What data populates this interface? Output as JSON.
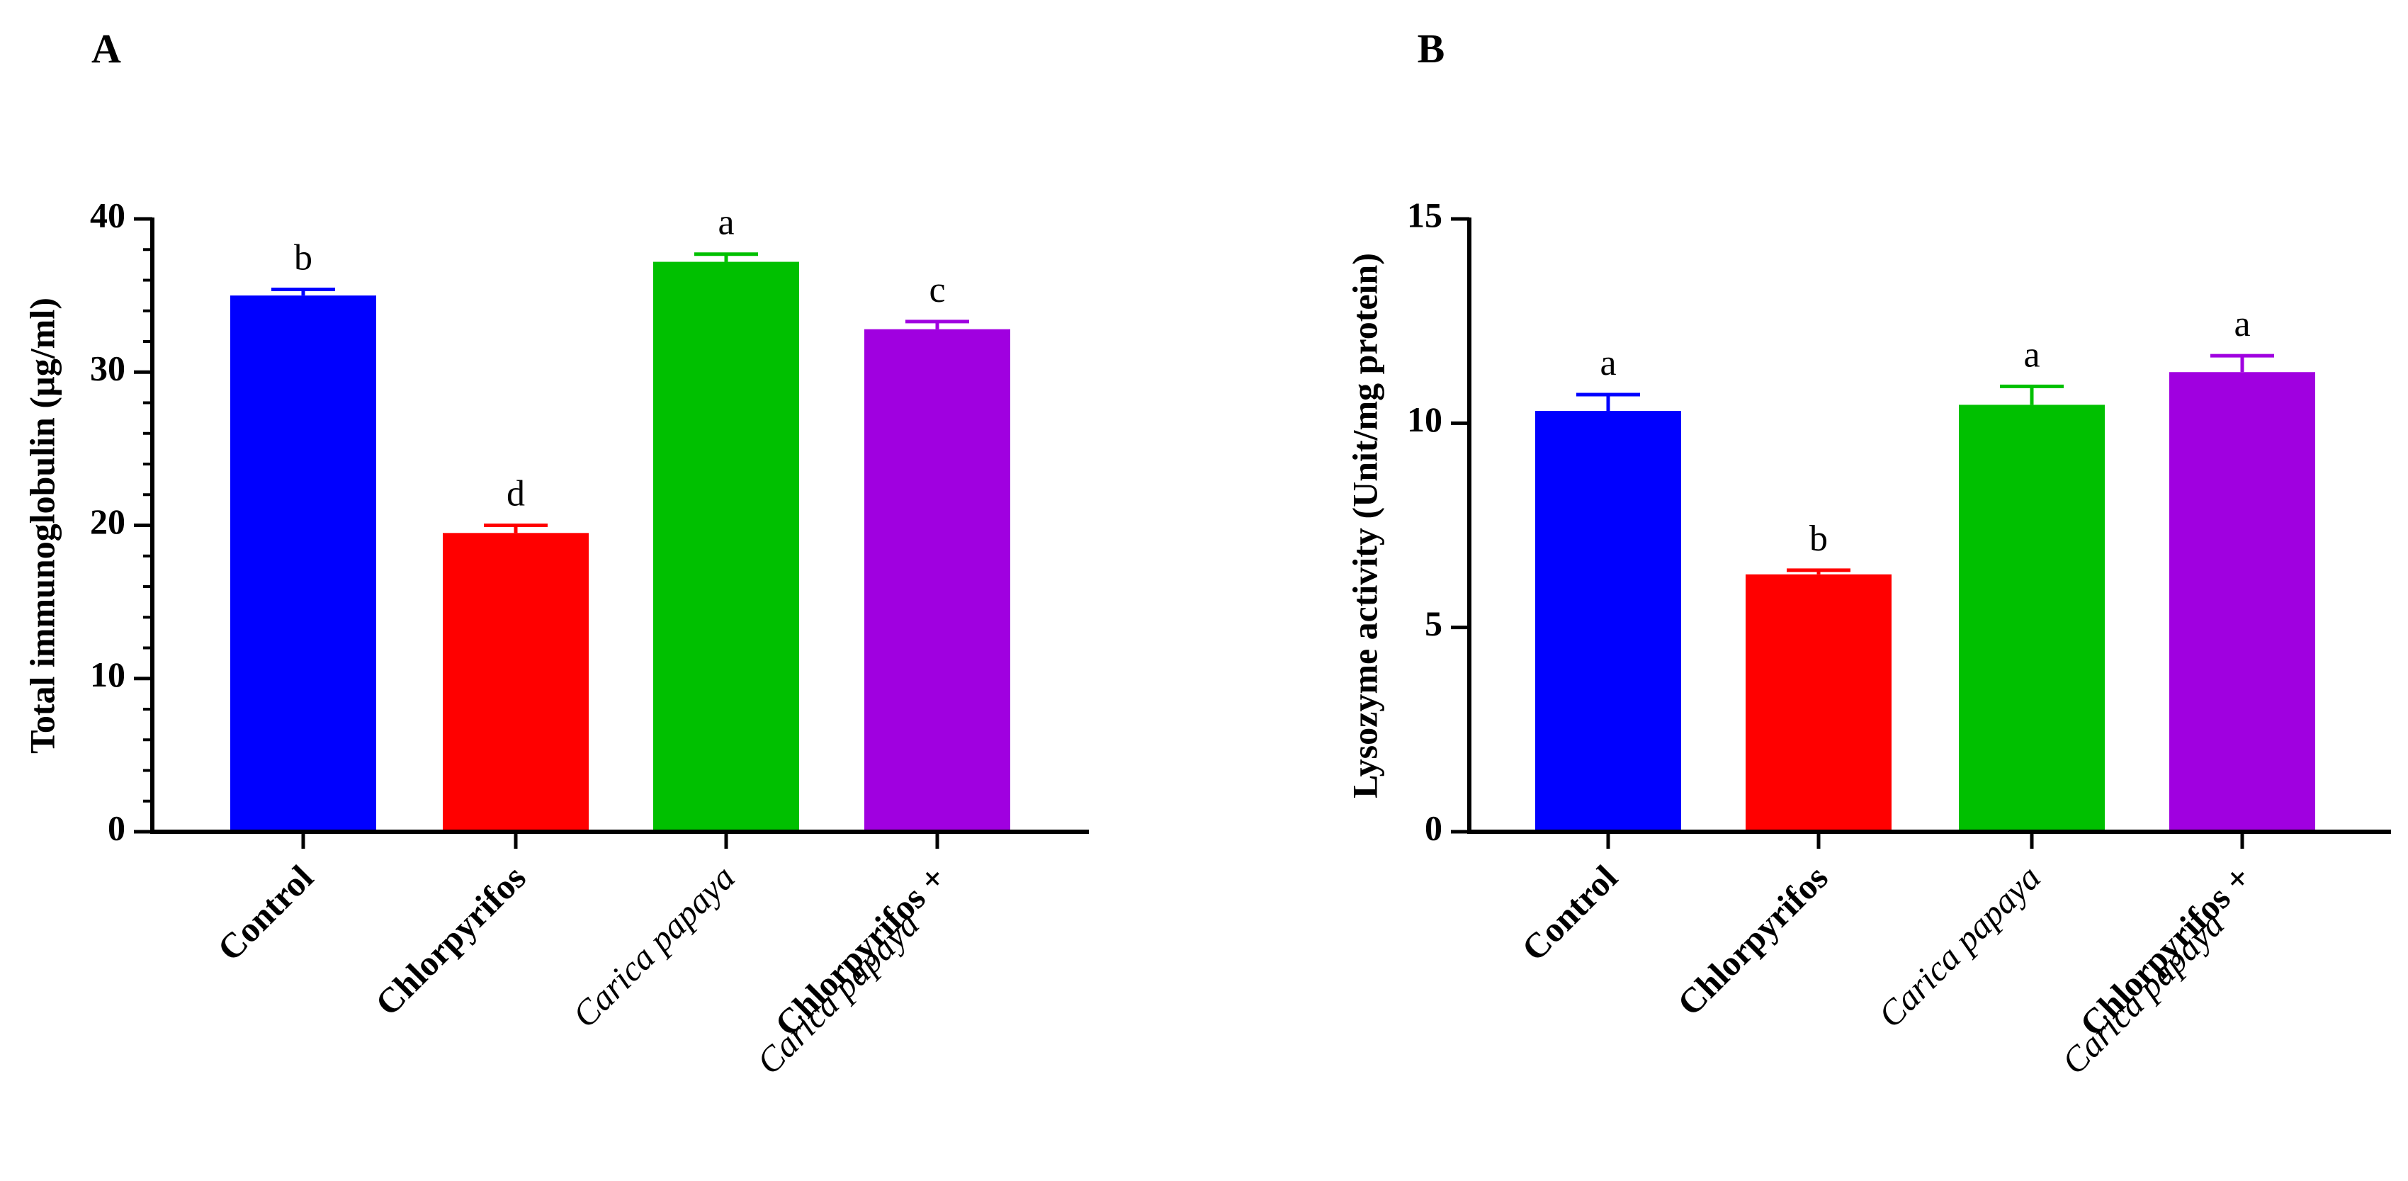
{
  "chart_data": [
    {
      "panel_label": "A",
      "type": "bar",
      "ylabel": "Total immunoglobulin (µg/ml)",
      "ylim": [
        0,
        40
      ],
      "yticks": [
        0,
        10,
        20,
        30,
        40
      ],
      "grid": false,
      "categories": [
        {
          "lines": [
            "Control"
          ],
          "styles": [
            "bold"
          ]
        },
        {
          "lines": [
            "Chlorpyrifos"
          ],
          "styles": [
            "bold"
          ]
        },
        {
          "lines": [
            "Carica papaya"
          ],
          "styles": [
            "italic"
          ]
        },
        {
          "lines": [
            "Chlorpyrifos +",
            "Carica papaya"
          ],
          "styles": [
            "bold",
            "italic"
          ]
        }
      ],
      "values": [
        35.0,
        19.5,
        37.2,
        32.8
      ],
      "errors": [
        0.4,
        0.5,
        0.5,
        0.5
      ],
      "significance": [
        "b",
        "d",
        "a",
        "c"
      ],
      "colors": [
        "#0000ff",
        "#ff0000",
        "#00c000",
        "#a000e0"
      ]
    },
    {
      "panel_label": "B",
      "type": "bar",
      "ylabel": "Lysozyme activity  (Unit/mg protein)",
      "ylim": [
        0,
        15
      ],
      "yticks": [
        0,
        5,
        10,
        15
      ],
      "grid": false,
      "categories": [
        {
          "lines": [
            "Control"
          ],
          "styles": [
            "bold"
          ]
        },
        {
          "lines": [
            "Chlorpyrifos"
          ],
          "styles": [
            "bold"
          ]
        },
        {
          "lines": [
            "Carica papaya"
          ],
          "styles": [
            "italic"
          ]
        },
        {
          "lines": [
            "Chlorpyrifos +",
            "Carica papaya"
          ],
          "styles": [
            "bold",
            "italic"
          ]
        }
      ],
      "values": [
        10.3,
        6.3,
        10.45,
        11.25
      ],
      "errors": [
        0.4,
        0.1,
        0.45,
        0.4
      ],
      "significance": [
        "a",
        "b",
        "a",
        "a"
      ],
      "colors": [
        "#0000ff",
        "#ff0000",
        "#00c000",
        "#a000e0"
      ]
    }
  ]
}
